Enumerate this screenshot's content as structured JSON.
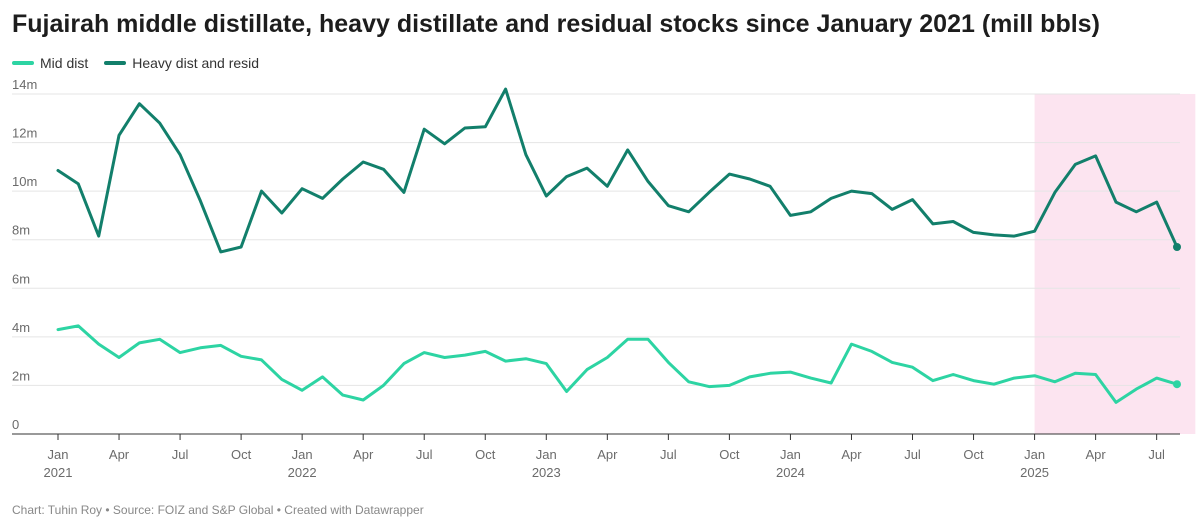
{
  "header": {
    "title": "Fujairah middle distillate, heavy distillate and residual stocks since January 2021 (mill bbls)"
  },
  "footer": {
    "credit": "Chart: Tuhin Roy • Source: FOIZ and S&P Global • Created with Datawrapper"
  },
  "colors": {
    "mid_dist": "#2dd4a3",
    "heavy_dist": "#127f6b",
    "highlight": "#fce4f0",
    "grid": "#e5e5e5"
  },
  "chart_data": {
    "type": "line",
    "title": "Fujairah middle distillate, heavy distillate and residual stocks since January 2021 (mill bbls)",
    "xlabel": "",
    "ylabel": "",
    "ylim": [
      0,
      14
    ],
    "y_ticks": [
      "0",
      "2m",
      "4m",
      "6m",
      "8m",
      "10m",
      "12m",
      "14m"
    ],
    "y_tick_values": [
      0,
      2,
      4,
      6,
      8,
      10,
      12,
      14
    ],
    "x_ticks": [
      {
        "month_index": 0,
        "label": "Jan",
        "year": "2021"
      },
      {
        "month_index": 3,
        "label": "Apr",
        "year": ""
      },
      {
        "month_index": 6,
        "label": "Jul",
        "year": ""
      },
      {
        "month_index": 9,
        "label": "Oct",
        "year": ""
      },
      {
        "month_index": 12,
        "label": "Jan",
        "year": "2022"
      },
      {
        "month_index": 15,
        "label": "Apr",
        "year": ""
      },
      {
        "month_index": 18,
        "label": "Jul",
        "year": ""
      },
      {
        "month_index": 21,
        "label": "Oct",
        "year": ""
      },
      {
        "month_index": 24,
        "label": "Jan",
        "year": "2023"
      },
      {
        "month_index": 27,
        "label": "Apr",
        "year": ""
      },
      {
        "month_index": 30,
        "label": "Jul",
        "year": ""
      },
      {
        "month_index": 33,
        "label": "Oct",
        "year": ""
      },
      {
        "month_index": 36,
        "label": "Jan",
        "year": "2024"
      },
      {
        "month_index": 39,
        "label": "Apr",
        "year": ""
      },
      {
        "month_index": 42,
        "label": "Jul",
        "year": ""
      },
      {
        "month_index": 45,
        "label": "Oct",
        "year": ""
      },
      {
        "month_index": 48,
        "label": "Jan",
        "year": "2025"
      },
      {
        "month_index": 51,
        "label": "Apr",
        "year": ""
      },
      {
        "month_index": 54,
        "label": "Jul",
        "year": ""
      }
    ],
    "highlight_range": [
      48,
      55.9
    ],
    "series": [
      {
        "name": "Mid dist",
        "color": "#2dd4a3",
        "values": [
          4.3,
          4.45,
          3.7,
          3.15,
          3.75,
          3.9,
          3.35,
          3.55,
          3.65,
          3.2,
          3.05,
          2.25,
          1.8,
          2.35,
          1.6,
          1.4,
          2.0,
          2.9,
          3.35,
          3.15,
          3.25,
          3.4,
          3.0,
          3.1,
          2.9,
          1.75,
          2.65,
          3.15,
          3.9,
          3.9,
          2.95,
          2.15,
          1.95,
          2.0,
          2.35,
          2.5,
          2.55,
          2.3,
          2.1,
          3.7,
          3.4,
          2.95,
          2.75,
          2.2,
          2.45,
          2.2,
          2.05,
          2.3,
          2.4,
          2.15,
          2.5,
          2.45,
          1.3,
          1.85,
          2.3,
          2.05
        ]
      },
      {
        "name": "Heavy dist and resid",
        "color": "#127f6b",
        "values": [
          10.85,
          10.3,
          8.15,
          12.3,
          13.6,
          12.8,
          11.5,
          9.6,
          7.5,
          7.7,
          10.0,
          9.1,
          10.1,
          9.7,
          10.5,
          11.2,
          10.9,
          9.95,
          12.55,
          11.95,
          12.6,
          12.65,
          14.2,
          11.5,
          9.8,
          10.6,
          10.95,
          10.2,
          11.7,
          10.4,
          9.4,
          9.15,
          9.95,
          10.7,
          10.5,
          10.2,
          9.0,
          9.15,
          9.7,
          10.0,
          9.9,
          9.25,
          9.65,
          8.65,
          8.75,
          8.3,
          8.2,
          8.15,
          8.35,
          9.95,
          11.1,
          11.45,
          9.55,
          9.15,
          9.55,
          7.7
        ]
      }
    ]
  }
}
